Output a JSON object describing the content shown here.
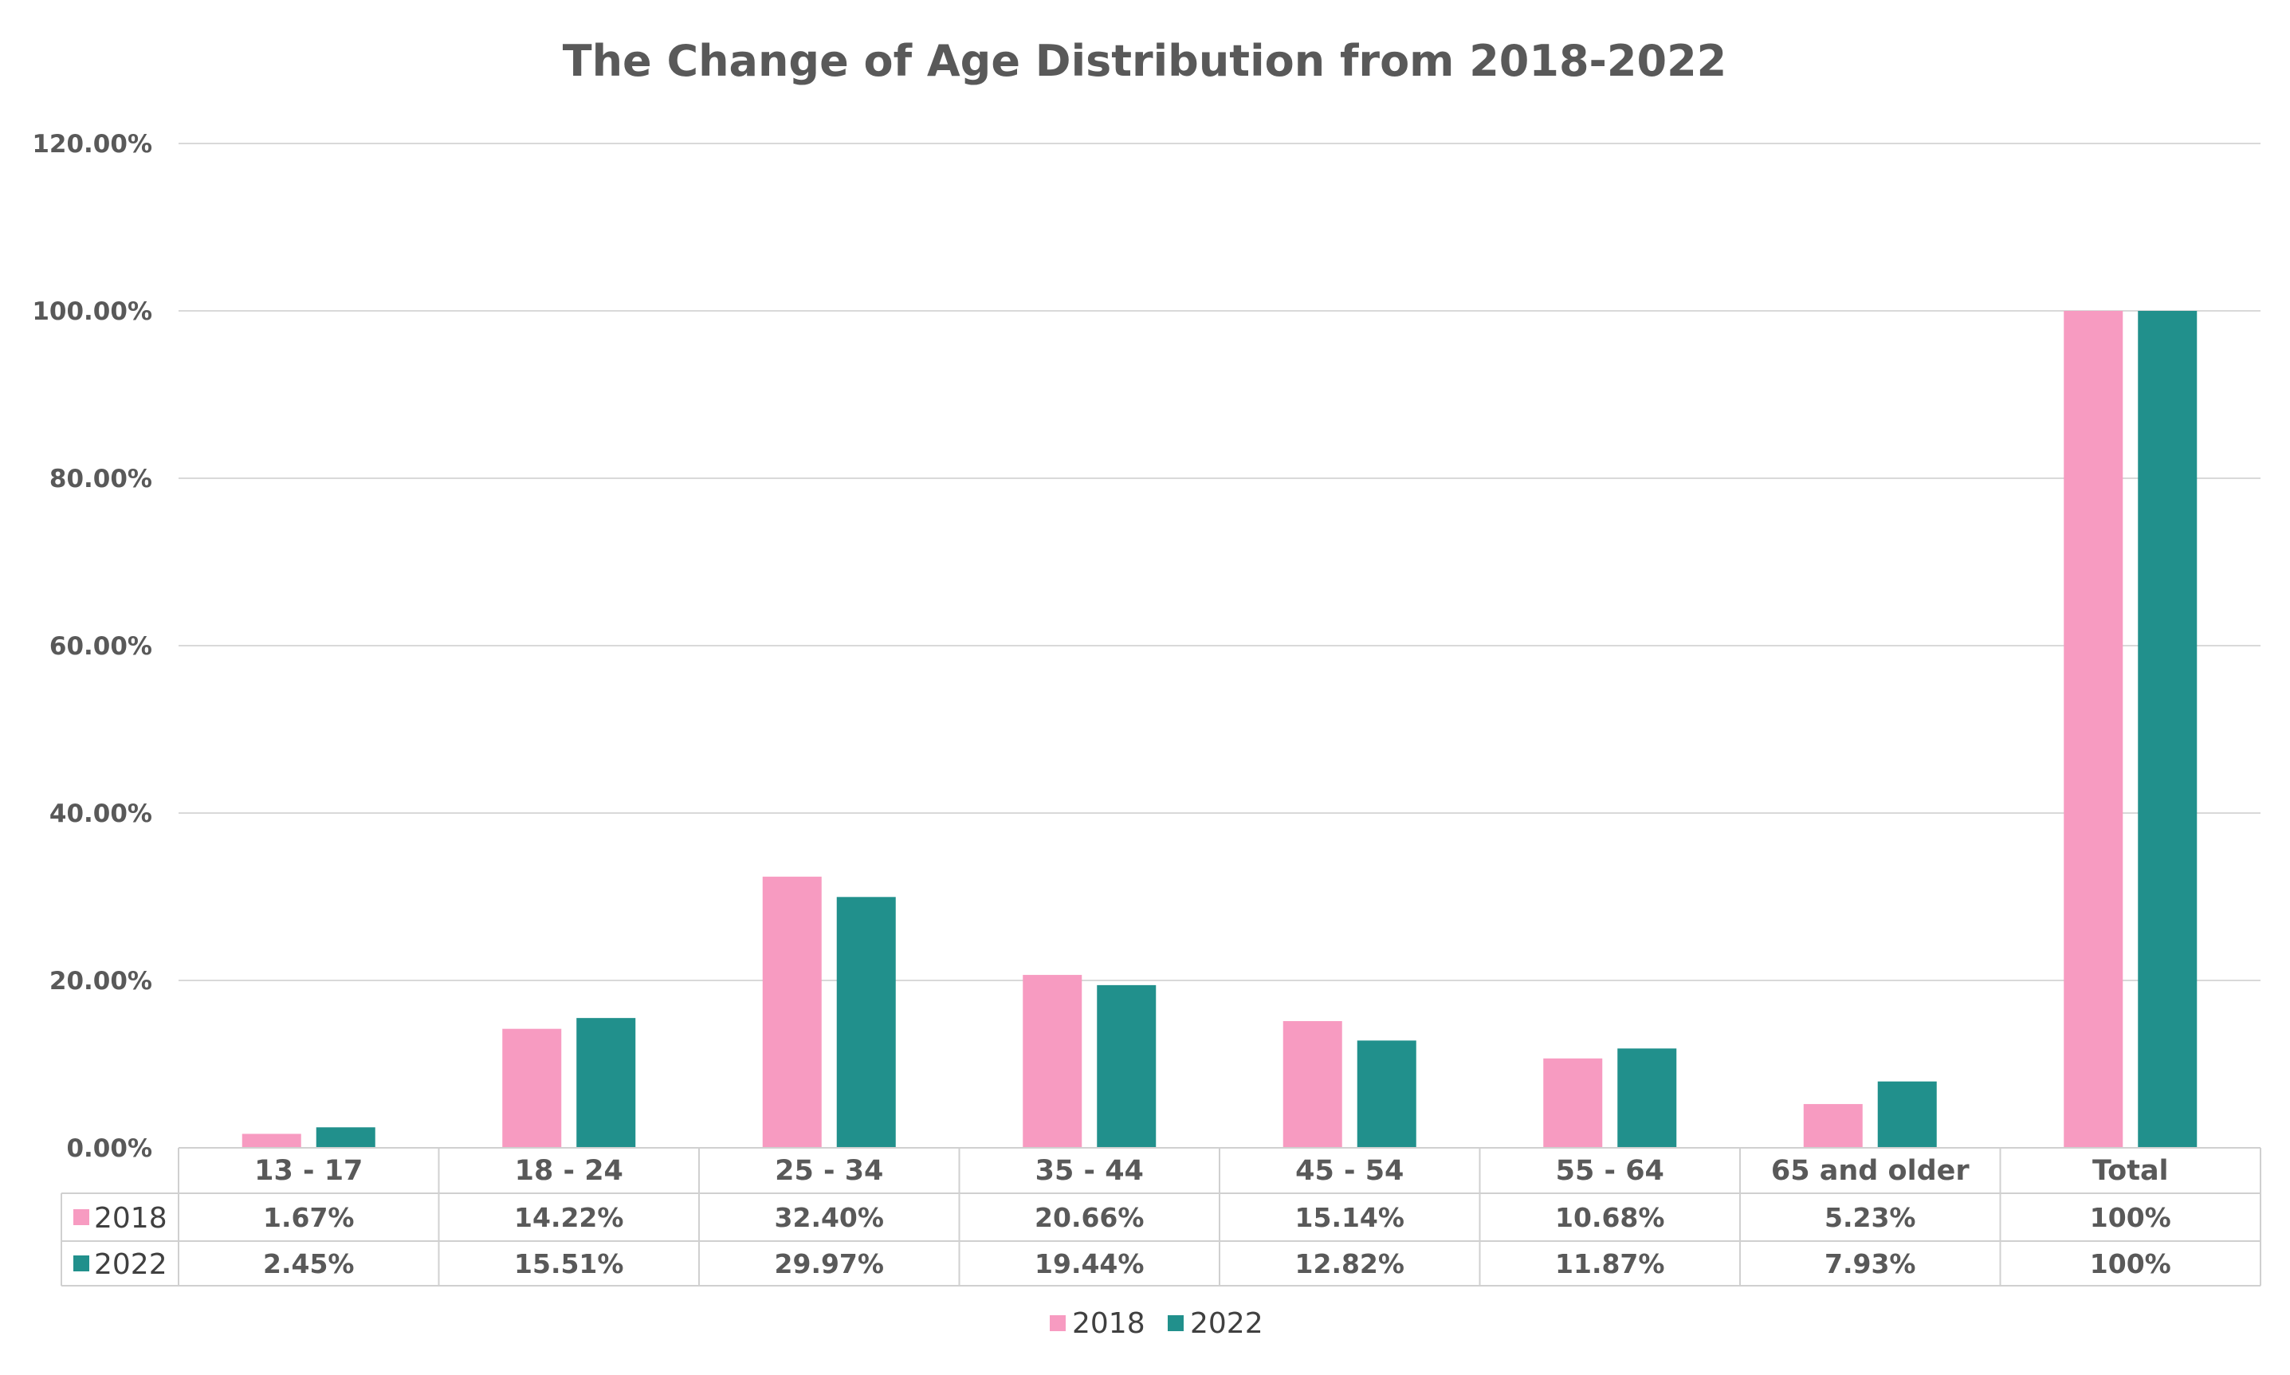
{
  "chart_data": {
    "type": "bar",
    "title": "The Change of Age Distribution from 2018-2022",
    "categories": [
      "13 - 17",
      "18 - 24",
      "25 - 34",
      "35 - 44",
      "45 - 54",
      "55 - 64",
      "65 and older",
      "Total"
    ],
    "series": [
      {
        "name": "2018",
        "color": "#F79BC1",
        "values": [
          1.67,
          14.22,
          32.4,
          20.66,
          15.14,
          10.68,
          5.23,
          100
        ],
        "labels": [
          "1.67%",
          "14.22%",
          "32.40%",
          "20.66%",
          "15.14%",
          "10.68%",
          "5.23%",
          "100%"
        ]
      },
      {
        "name": "2022",
        "color": "#21908C",
        "values": [
          2.45,
          15.51,
          29.97,
          19.44,
          12.82,
          11.87,
          7.93,
          100
        ],
        "labels": [
          "2.45%",
          "15.51%",
          "29.97%",
          "19.44%",
          "12.82%",
          "11.87%",
          "7.93%",
          "100%"
        ]
      }
    ],
    "ylim": [
      0,
      120
    ],
    "yticks": [
      "0.00%",
      "20.00%",
      "40.00%",
      "60.00%",
      "80.00%",
      "100.00%",
      "120.00%"
    ],
    "grid": true,
    "data_table": true,
    "legend_position": "bottom"
  }
}
